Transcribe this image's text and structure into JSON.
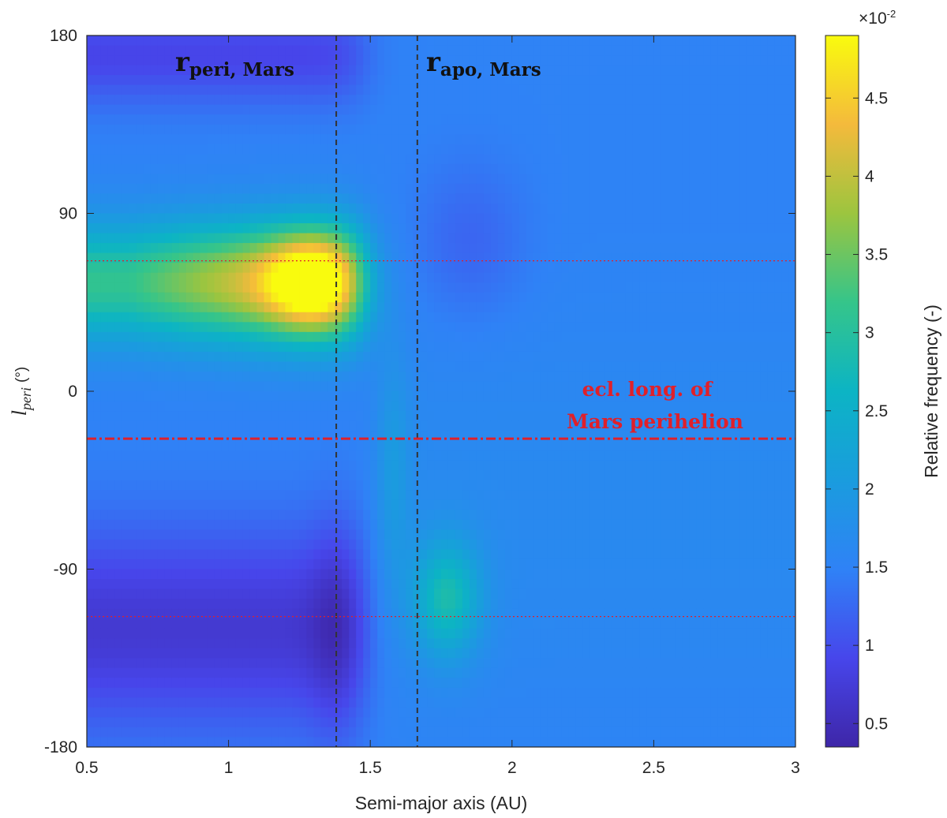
{
  "chart_data": {
    "type": "heatmap",
    "xlabel": "Semi-major axis (AU)",
    "ylabel": {
      "main": "l",
      "sub": "peri",
      "unit": "(°)"
    },
    "xlim": [
      0.5,
      3
    ],
    "ylim": [
      -180,
      180
    ],
    "x_ticks": [
      "0.5",
      "1",
      "1.5",
      "2",
      "2.5",
      "3"
    ],
    "y_ticks": [
      "180",
      "90",
      "0",
      "-90",
      "-180"
    ],
    "colorbar": {
      "label": "Relative frequency (-)",
      "exponent_base": "×10",
      "exponent": "-2",
      "range": [
        0.35,
        4.9
      ],
      "ticks": [
        "0.5",
        "1",
        "1.5",
        "2",
        "2.5",
        "3",
        "3.5",
        "4",
        "4.5"
      ],
      "colormap": "parula"
    },
    "heatmap_peaks": [
      {
        "x": 1.3,
        "y": 55,
        "value": 4.9
      },
      {
        "x": 1.75,
        "y": -100,
        "value": 2.8
      }
    ],
    "vertical_lines": [
      {
        "x": 1.38,
        "style": "dashed",
        "color": "#333333",
        "label_main": "r",
        "label_sub": "peri, Mars"
      },
      {
        "x": 1.666,
        "style": "dashed",
        "color": "#333333",
        "label_main": "r",
        "label_sub": "apo, Mars"
      }
    ],
    "horizontal_lines": [
      {
        "y": -24,
        "style": "dash-dot",
        "color": "#e0202a"
      },
      {
        "y": 66,
        "style": "dotted",
        "color": "#e0202a"
      },
      {
        "y": -114,
        "style": "dotted",
        "color": "#e0202a"
      }
    ],
    "annotation": {
      "line1": "ecl. long. of",
      "line2": "Mars perihelion",
      "color": "#e0202a"
    }
  }
}
